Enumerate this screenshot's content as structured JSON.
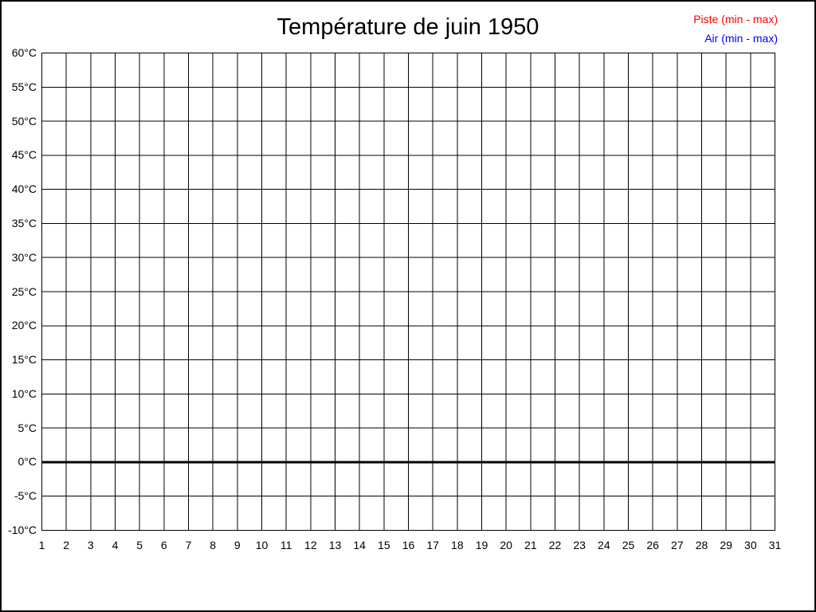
{
  "page": {
    "title": "Température de juin 1950",
    "legend": {
      "position": "top-right",
      "items": [
        {
          "label": "Piste (min - max)",
          "color": "#ff0000"
        },
        {
          "label": "Air (min - max)",
          "color": "#0000ff"
        }
      ]
    }
  },
  "chart_data": {
    "type": "line",
    "title": "Température de juin 1950",
    "x": {
      "label": "",
      "min": 1,
      "max": 31,
      "ticks": [
        "1",
        "2",
        "3",
        "4",
        "5",
        "6",
        "7",
        "8",
        "9",
        "10",
        "11",
        "12",
        "13",
        "14",
        "15",
        "16",
        "17",
        "18",
        "19",
        "20",
        "21",
        "22",
        "23",
        "24",
        "25",
        "26",
        "27",
        "28",
        "29",
        "30",
        "31"
      ]
    },
    "y": {
      "label": "",
      "min": -10,
      "max": 60,
      "step": 5,
      "ticks": [
        "60°C",
        "55°C",
        "50°C",
        "45°C",
        "40°C",
        "35°C",
        "30°C",
        "25°C",
        "20°C",
        "15°C",
        "10°C",
        "5°C",
        "0°C",
        "-5°C",
        "-10°C"
      ]
    },
    "grid": true,
    "baseline_value": 0,
    "legend_position": "top-right",
    "series": [
      {
        "name": "Piste (min - max)",
        "color": "#ff0000",
        "values": []
      },
      {
        "name": "Air (min - max)",
        "color": "#0000ff",
        "values": []
      }
    ],
    "notes": "Empty grid — no temperature data plotted for any day."
  },
  "colors": {
    "background": "#ffffff",
    "border": "#000000",
    "grid": "#000000",
    "title": "#000000"
  }
}
